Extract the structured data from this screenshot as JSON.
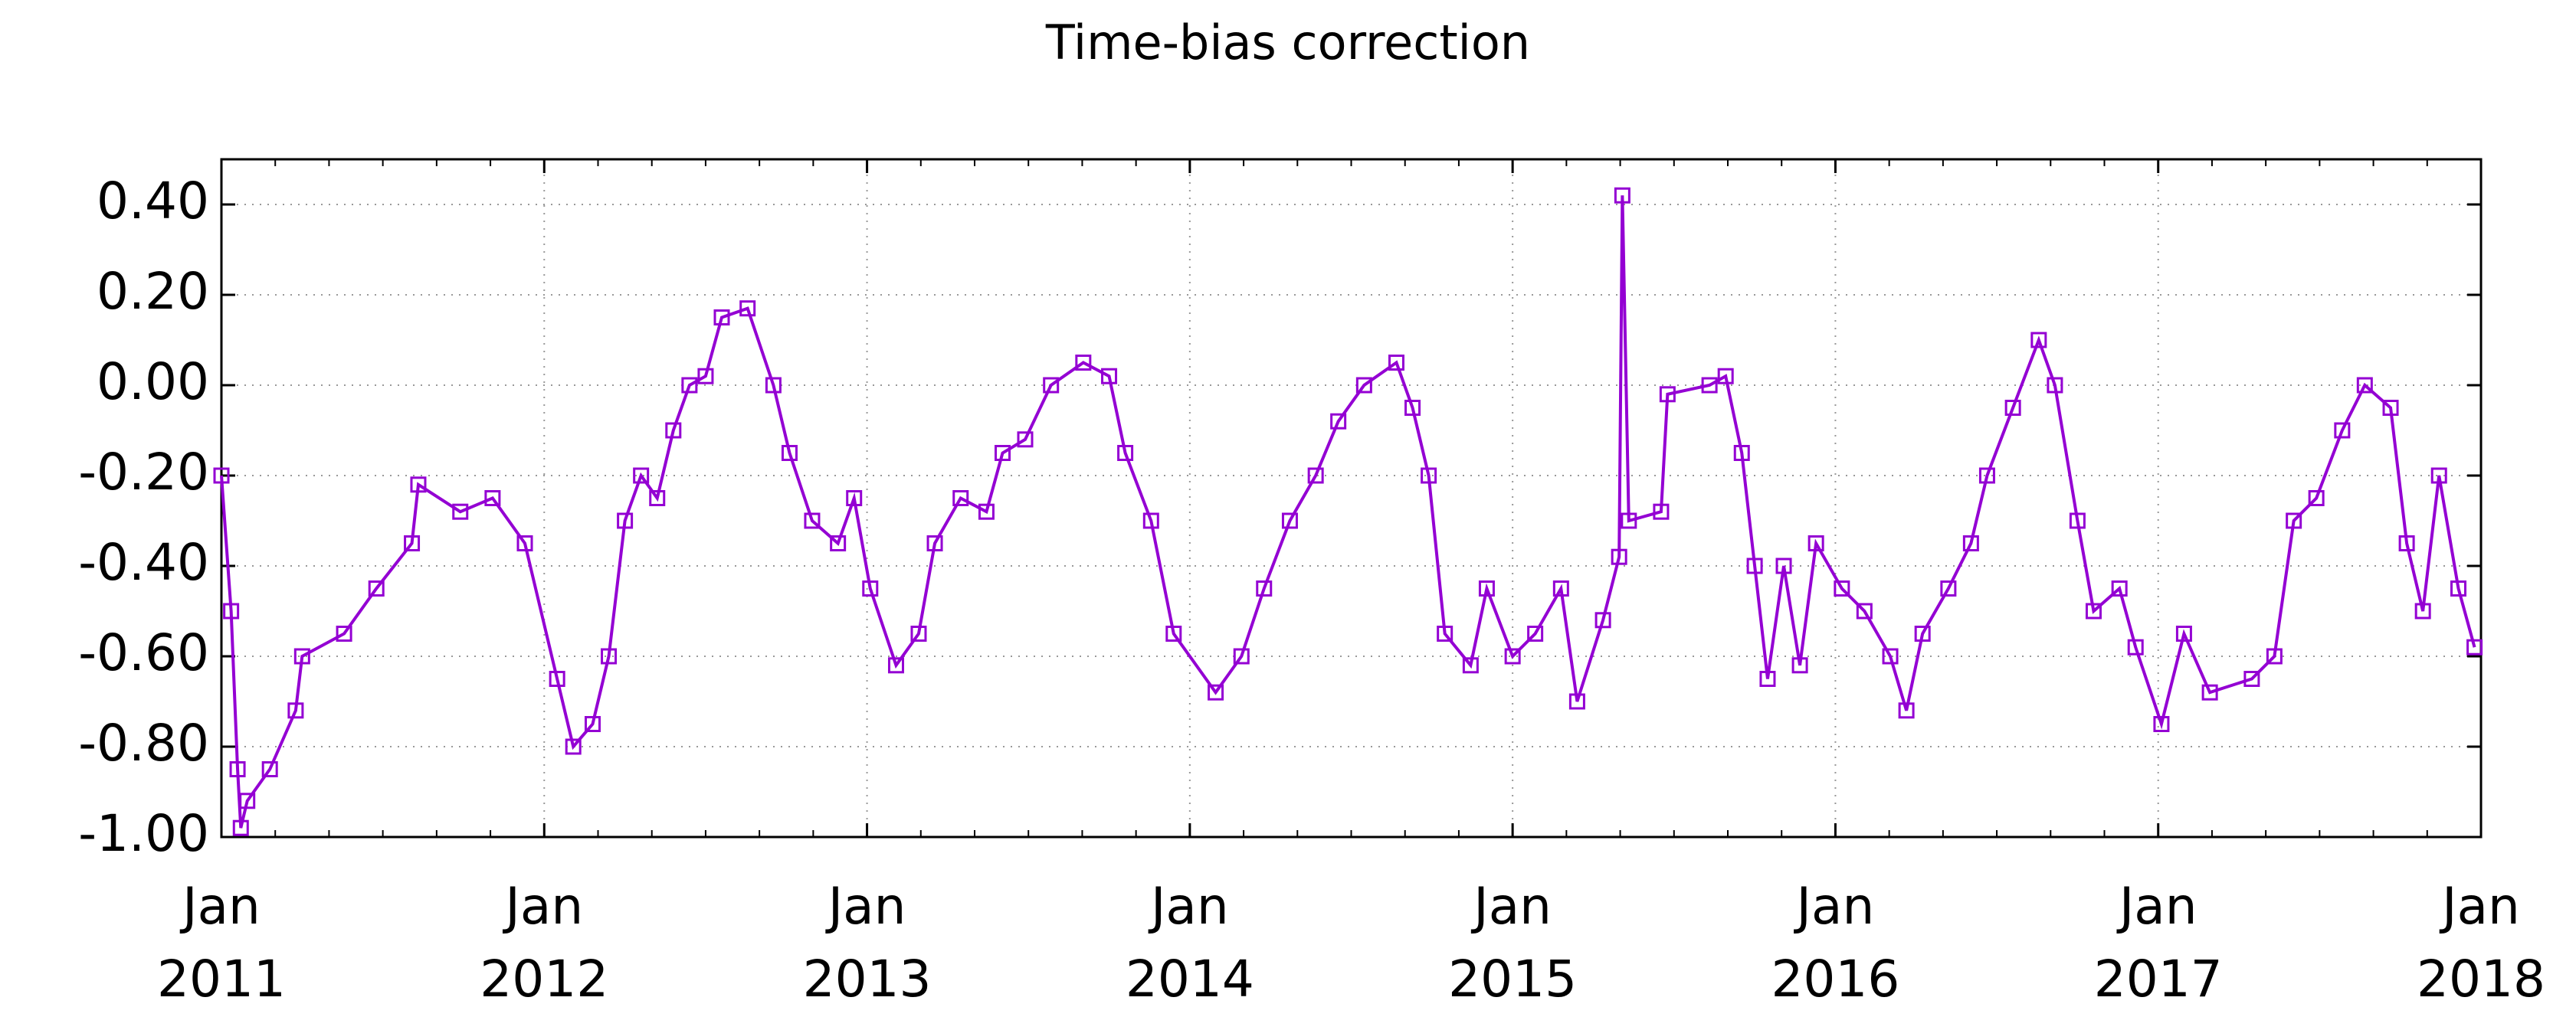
{
  "chart_data": {
    "type": "line",
    "title": "Time-bias correction",
    "x": [
      2011.0,
      2011.03,
      2011.05,
      2011.06,
      2011.08,
      2011.15,
      2011.23,
      2011.25,
      2011.38,
      2011.48,
      2011.59,
      2011.61,
      2011.74,
      2011.84,
      2011.94,
      2012.04,
      2012.09,
      2012.15,
      2012.2,
      2012.25,
      2012.3,
      2012.35,
      2012.4,
      2012.45,
      2012.5,
      2012.55,
      2012.63,
      2012.71,
      2012.76,
      2012.83,
      2012.91,
      2012.96,
      2013.01,
      2013.09,
      2013.16,
      2013.21,
      2013.29,
      2013.37,
      2013.42,
      2013.49,
      2013.57,
      2013.67,
      2013.75,
      2013.8,
      2013.88,
      2013.95,
      2014.08,
      2014.16,
      2014.23,
      2014.31,
      2014.39,
      2014.46,
      2014.54,
      2014.64,
      2014.69,
      2014.74,
      2014.79,
      2014.87,
      2014.92,
      2015.0,
      2015.07,
      2015.15,
      2015.2,
      2015.28,
      2015.33,
      2015.34,
      2015.36,
      2015.46,
      2015.48,
      2015.61,
      2015.66,
      2015.71,
      2015.75,
      2015.79,
      2015.84,
      2015.89,
      2015.94,
      2016.02,
      2016.09,
      2016.17,
      2016.22,
      2016.27,
      2016.35,
      2016.42,
      2016.47,
      2016.55,
      2016.63,
      2016.68,
      2016.75,
      2016.8,
      2016.88,
      2016.93,
      2017.01,
      2017.08,
      2017.16,
      2017.29,
      2017.36,
      2017.42,
      2017.49,
      2017.57,
      2017.64,
      2017.72,
      2017.77,
      2017.82,
      2017.87,
      2017.93,
      2017.98
    ],
    "series": [
      {
        "color": "#9400d3",
        "values": [
          -0.2,
          -0.5,
          -0.85,
          -0.98,
          -0.92,
          -0.85,
          -0.72,
          -0.6,
          -0.55,
          -0.45,
          -0.35,
          -0.22,
          -0.28,
          -0.25,
          -0.35,
          -0.65,
          -0.8,
          -0.75,
          -0.6,
          -0.3,
          -0.2,
          -0.25,
          -0.1,
          0.0,
          0.02,
          0.15,
          0.17,
          0.0,
          -0.15,
          -0.3,
          -0.35,
          -0.25,
          -0.45,
          -0.62,
          -0.55,
          -0.35,
          -0.25,
          -0.28,
          -0.15,
          -0.12,
          0.0,
          0.05,
          0.02,
          -0.15,
          -0.3,
          -0.55,
          -0.68,
          -0.6,
          -0.45,
          -0.3,
          -0.2,
          -0.08,
          0.0,
          0.05,
          -0.05,
          -0.2,
          -0.55,
          -0.62,
          -0.45,
          -0.6,
          -0.55,
          -0.45,
          -0.7,
          -0.52,
          -0.38,
          0.42,
          -0.3,
          -0.28,
          -0.02,
          0.0,
          0.02,
          -0.15,
          -0.4,
          -0.65,
          -0.4,
          -0.62,
          -0.35,
          -0.45,
          -0.5,
          -0.6,
          -0.72,
          -0.55,
          -0.45,
          -0.35,
          -0.2,
          -0.05,
          0.1,
          0.0,
          -0.3,
          -0.5,
          -0.45,
          -0.58,
          -0.75,
          -0.55,
          -0.68,
          -0.65,
          -0.6,
          -0.3,
          -0.25,
          -0.1,
          0.0,
          -0.05,
          -0.35,
          -0.5,
          -0.2,
          -0.45,
          -0.58
        ]
      }
    ],
    "xlim": [
      2011,
      2018
    ],
    "xticks": [
      {
        "value": 2011,
        "label": "Jan 2011"
      },
      {
        "value": 2012,
        "label": "Jan 2012"
      },
      {
        "value": 2013,
        "label": "Jan 2013"
      },
      {
        "value": 2014,
        "label": "Jan 2014"
      },
      {
        "value": 2015,
        "label": "Jan 2015"
      },
      {
        "value": 2016,
        "label": "Jan 2016"
      },
      {
        "value": 2017,
        "label": "Jan 2017"
      },
      {
        "value": 2018,
        "label": "Jan 2018"
      }
    ],
    "ylim": [
      -1,
      0.5
    ],
    "yticks": [
      {
        "value": -1,
        "label": "-1.00"
      },
      {
        "value": -0.8,
        "label": "-0.80"
      },
      {
        "value": -0.6,
        "label": "-0.60"
      },
      {
        "value": -0.4,
        "label": "-0.40"
      },
      {
        "value": -0.2,
        "label": "-0.20"
      },
      {
        "value": 0,
        "label": "0.00"
      },
      {
        "value": 0.2,
        "label": "0.20"
      },
      {
        "value": 0.4,
        "label": "0.40"
      }
    ],
    "grid": true
  }
}
